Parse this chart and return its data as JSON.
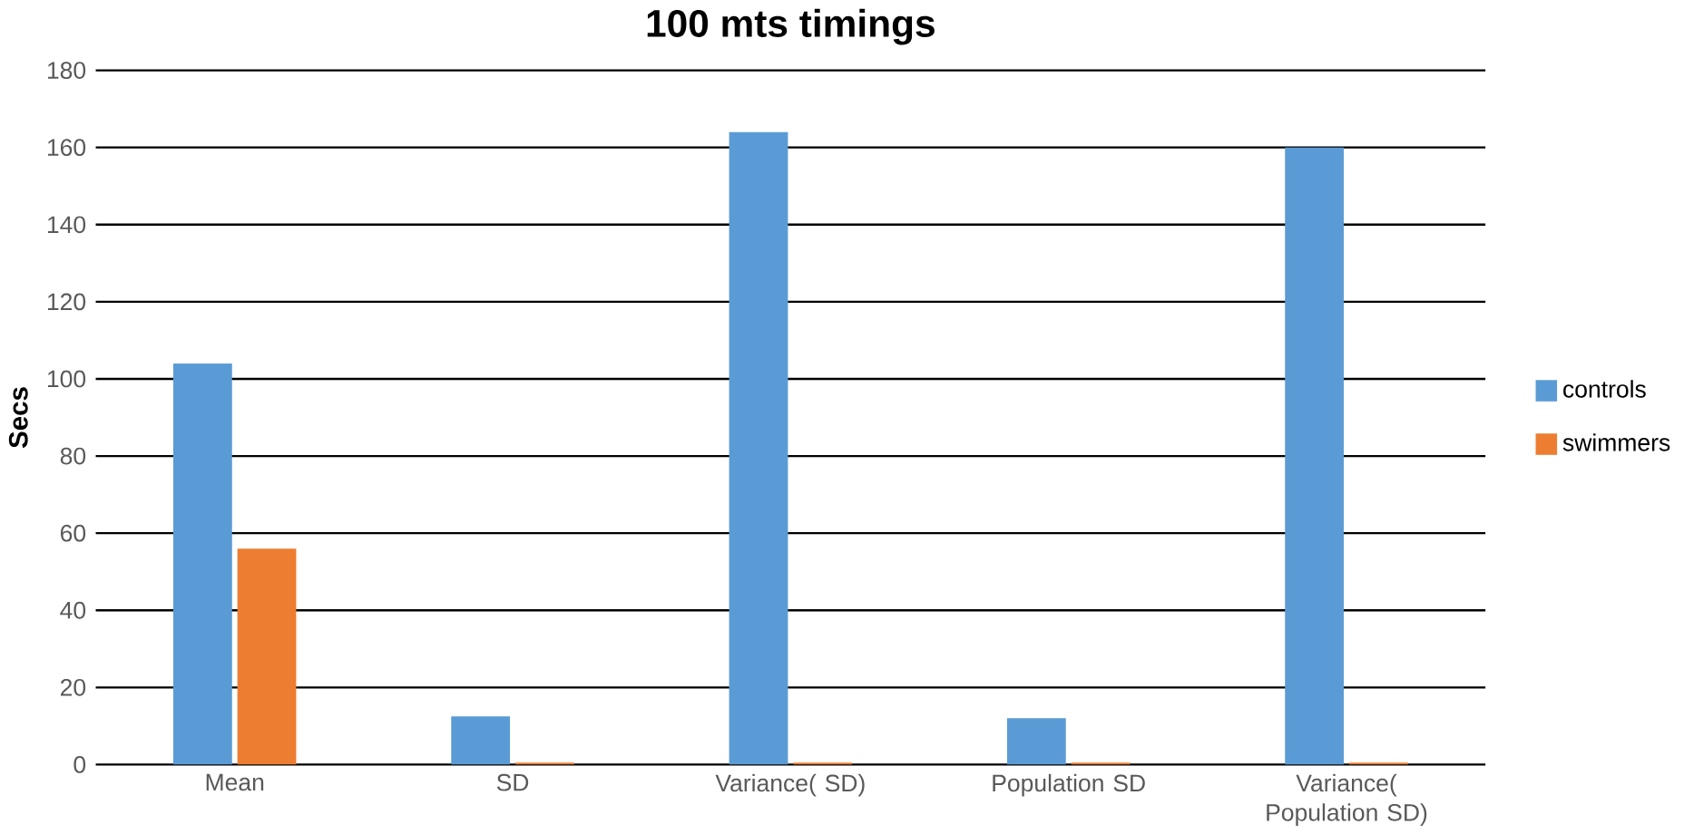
{
  "chart_data": {
    "type": "bar",
    "title": "100 mts timings",
    "ylabel": "Secs",
    "categories": [
      "Mean",
      "SD",
      "Variance( SD)",
      "Population SD",
      "Variance( Population SD)"
    ],
    "series": [
      {
        "name": "controls",
        "color": "#5b9bd5",
        "values": [
          104,
          12.5,
          164,
          12,
          160
        ]
      },
      {
        "name": "swimmers",
        "color": "#ed7d31",
        "values": [
          56,
          0.5,
          0.5,
          0.5,
          0.5
        ]
      }
    ],
    "ylim": [
      0,
      180
    ],
    "yticks": [
      0,
      20,
      40,
      60,
      80,
      100,
      120,
      140,
      160,
      180
    ],
    "grid": "y",
    "legend": "right"
  }
}
